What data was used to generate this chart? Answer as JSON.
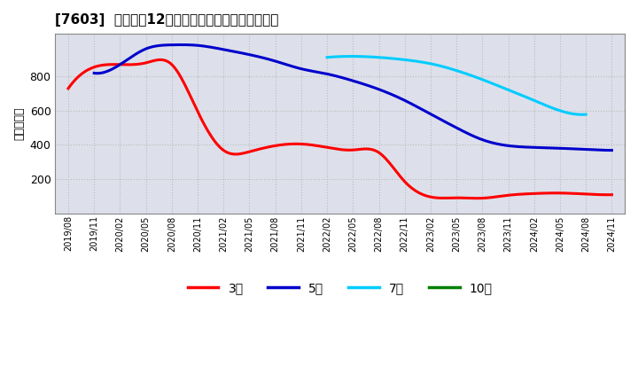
{
  "title": "[7603]  経常利益12か月移動合計の標準偏差の推移",
  "ylabel": "（百万円）",
  "background_color": "#ffffff",
  "grid_color": "#bbbbbb",
  "plot_bg_color": "#dde0ea",
  "ylim": [
    0,
    1050
  ],
  "yticks": [
    200,
    400,
    600,
    800
  ],
  "x_labels": [
    "2019/08",
    "2019/11",
    "2020/02",
    "2020/05",
    "2020/08",
    "2020/11",
    "2021/02",
    "2021/05",
    "2021/08",
    "2021/11",
    "2022/02",
    "2022/05",
    "2022/08",
    "2022/11",
    "2023/02",
    "2023/05",
    "2023/08",
    "2023/11",
    "2024/02",
    "2024/05",
    "2024/08",
    "2024/11"
  ],
  "series": {
    "3年": {
      "color": "#ff0000",
      "data_x": [
        0,
        1,
        2,
        3,
        4,
        5,
        6,
        7,
        8,
        9,
        10,
        11,
        12,
        13,
        14,
        15,
        16,
        17,
        18,
        19,
        20,
        21
      ],
      "data_y": [
        730,
        855,
        870,
        880,
        870,
        595,
        368,
        360,
        395,
        405,
        385,
        370,
        355,
        185,
        95,
        90,
        88,
        105,
        115,
        118,
        112,
        108
      ]
    },
    "5年": {
      "color": "#0000cc",
      "data_x": [
        1,
        2,
        3,
        4,
        5,
        6,
        7,
        8,
        9,
        10,
        11,
        12,
        13,
        14,
        15,
        16,
        17,
        18,
        19,
        20,
        21
      ],
      "data_y": [
        820,
        870,
        962,
        985,
        982,
        958,
        928,
        890,
        845,
        815,
        775,
        725,
        660,
        580,
        500,
        430,
        395,
        385,
        380,
        373,
        368
      ]
    },
    "7年": {
      "color": "#00ccff",
      "data_x": [
        10,
        11,
        12,
        13,
        14,
        15,
        16,
        17,
        18,
        19,
        20
      ],
      "data_y": [
        912,
        918,
        912,
        898,
        875,
        835,
        782,
        722,
        660,
        600,
        578
      ]
    },
    "10年": {
      "color": "#008000",
      "data_x": [],
      "data_y": []
    }
  },
  "legend_entries": [
    {
      "label": "3年",
      "color": "#ff0000"
    },
    {
      "label": "5年",
      "color": "#0000cc"
    },
    {
      "label": "7年",
      "color": "#00ccff"
    },
    {
      "label": "10年",
      "color": "#008000"
    }
  ]
}
